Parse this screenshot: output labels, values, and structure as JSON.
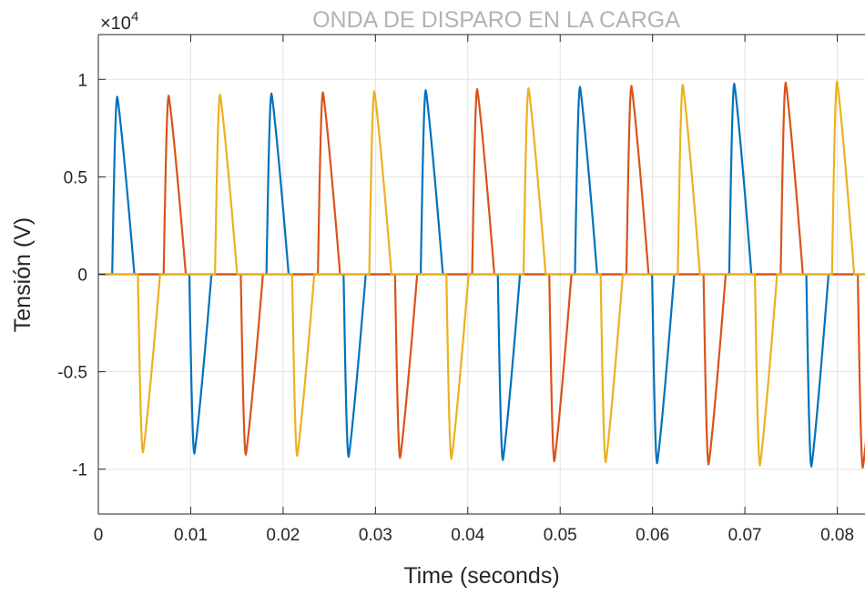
{
  "chart_data": {
    "type": "line",
    "title": "ONDA DE DISPARO EN LA CARGA",
    "xlabel": "Time (seconds)",
    "ylabel": "Tensión (V)",
    "y_multiplier": {
      "base": "×10",
      "exponent": "4"
    },
    "xlim": [
      0,
      0.083
    ],
    "ylim": [
      -1.23,
      1.23
    ],
    "xticks": [
      0,
      0.01,
      0.02,
      0.03,
      0.04,
      0.05,
      0.06,
      0.07,
      0.08
    ],
    "xtick_labels": [
      "0",
      "0.01",
      "0.02",
      "0.03",
      "0.04",
      "0.05",
      "0.06",
      "0.07",
      "0.08"
    ],
    "yticks": [
      -1,
      -0.5,
      0,
      0.5,
      1
    ],
    "ytick_labels": [
      "-1",
      "-0.5",
      "0",
      "0.5",
      "1"
    ],
    "grid": true,
    "legend": "none",
    "waveform": {
      "period": 0.0167,
      "pulse_width": 0.0024,
      "peak_time_after_start": 0.00055,
      "peak_start": 0.91,
      "peak_growth_per_second": 1.0
    },
    "series": [
      {
        "color": "#0072BD",
        "pulses": [
          {
            "start": 0.0015,
            "polarity": 1
          },
          {
            "start": 0.00985,
            "polarity": -1
          },
          {
            "start": 0.0182,
            "polarity": 1
          },
          {
            "start": 0.02655,
            "polarity": -1
          },
          {
            "start": 0.0349,
            "polarity": 1
          },
          {
            "start": 0.04325,
            "polarity": -1
          },
          {
            "start": 0.0516,
            "polarity": 1
          },
          {
            "start": 0.05995,
            "polarity": -1
          },
          {
            "start": 0.0683,
            "polarity": 1
          },
          {
            "start": 0.07665,
            "polarity": -1
          }
        ]
      },
      {
        "color": "#D95319",
        "pulses": [
          {
            "start": 0.00707,
            "polarity": 1
          },
          {
            "start": 0.01542,
            "polarity": -1
          },
          {
            "start": 0.02377,
            "polarity": 1
          },
          {
            "start": 0.03212,
            "polarity": -1
          },
          {
            "start": 0.04047,
            "polarity": 1
          },
          {
            "start": 0.04882,
            "polarity": -1
          },
          {
            "start": 0.05717,
            "polarity": 1
          },
          {
            "start": 0.06552,
            "polarity": -1
          },
          {
            "start": 0.07387,
            "polarity": 1
          },
          {
            "start": 0.08222,
            "polarity": -1
          }
        ]
      },
      {
        "color": "#EDB120",
        "pulses": [
          {
            "start": 0.00428,
            "polarity": -1
          },
          {
            "start": 0.01263,
            "polarity": 1
          },
          {
            "start": 0.02098,
            "polarity": -1
          },
          {
            "start": 0.02933,
            "polarity": 1
          },
          {
            "start": 0.03768,
            "polarity": -1
          },
          {
            "start": 0.04603,
            "polarity": 1
          },
          {
            "start": 0.05438,
            "polarity": -1
          },
          {
            "start": 0.06273,
            "polarity": 1
          },
          {
            "start": 0.07108,
            "polarity": -1
          },
          {
            "start": 0.07943,
            "polarity": 1
          }
        ]
      }
    ]
  }
}
